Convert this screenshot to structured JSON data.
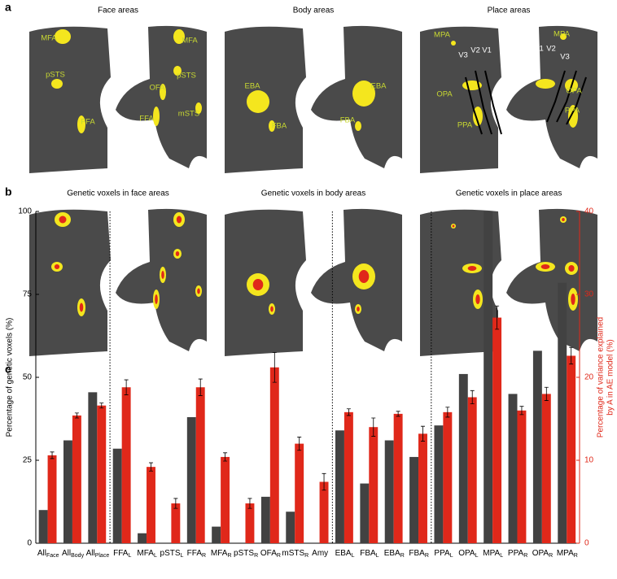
{
  "panels": {
    "a": {
      "label": "a",
      "maps": [
        {
          "title": "Face areas",
          "labels": [
            "MFA",
            "pSTS",
            "FFA",
            "MFA",
            "pSTS",
            "OFA",
            "mSTS",
            "FFA"
          ]
        },
        {
          "title": "Body areas",
          "labels": [
            "EBA",
            "FBA",
            "EBA",
            "FBA"
          ]
        },
        {
          "title": "Place areas",
          "labels": [
            "MPA",
            "V3",
            "V2",
            "V1",
            "OPA",
            "PPA",
            "MPA",
            "V1",
            "V2",
            "V3",
            "OPA",
            "PPA"
          ]
        }
      ]
    },
    "b": {
      "label": "b",
      "maps": [
        {
          "title": "Genetic voxels in face areas"
        },
        {
          "title": "Genetic voxels in body areas"
        },
        {
          "title": "Genetic voxels in place areas"
        }
      ]
    }
  },
  "chart_data": {
    "type": "bar",
    "label": "c",
    "categories": [
      {
        "text": "All",
        "sub": "Face"
      },
      {
        "text": "All",
        "sub": "Body"
      },
      {
        "text": "All",
        "sub": "Place"
      },
      {
        "text": "FFA",
        "sub": "L"
      },
      {
        "text": "MFA",
        "sub": "L"
      },
      {
        "text": "pSTS",
        "sub": "L"
      },
      {
        "text": "FFA",
        "sub": "R"
      },
      {
        "text": "MFA",
        "sub": "R"
      },
      {
        "text": "pSTS",
        "sub": "R"
      },
      {
        "text": "OFA",
        "sub": "R"
      },
      {
        "text": "mSTS",
        "sub": "R"
      },
      {
        "text": "Amy"
      },
      {
        "text": "EBA",
        "sub": "L"
      },
      {
        "text": "FBA",
        "sub": "L"
      },
      {
        "text": "EBA",
        "sub": "R"
      },
      {
        "text": "FBA",
        "sub": "R"
      },
      {
        "text": "PPA",
        "sub": "L"
      },
      {
        "text": "OPA",
        "sub": "L"
      },
      {
        "text": "MPA",
        "sub": "L"
      },
      {
        "text": "PPA",
        "sub": "R"
      },
      {
        "text": "OPA",
        "sub": "R"
      },
      {
        "text": "MPA",
        "sub": "R"
      }
    ],
    "series": [
      {
        "color": "#424242",
        "values": [
          10,
          31,
          45.5,
          28.5,
          3,
          0,
          38,
          5,
          0,
          14,
          9.5,
          0,
          34,
          18,
          31,
          26,
          35.5,
          51,
          100,
          45,
          58,
          78.5
        ]
      },
      {
        "color": "#e0281a",
        "axis": "y2",
        "values": [
          10.6,
          15.4,
          16.6,
          18.8,
          9.2,
          4.8,
          18.8,
          10.4,
          4.8,
          21.2,
          12,
          7.4,
          15.8,
          14,
          15.6,
          13.2,
          15.8,
          17.6,
          27.2,
          16,
          18,
          22.6
        ],
        "errors": [
          0.4,
          0.3,
          0.3,
          0.9,
          0.5,
          0.6,
          1,
          0.5,
          0.6,
          1.8,
          0.8,
          1,
          0.4,
          1.1,
          0.3,
          0.9,
          0.6,
          0.8,
          1.4,
          0.5,
          0.8,
          1
        ]
      }
    ],
    "ylabel": "Percentage of genetic voxels (%)",
    "y2label": [
      "Percentage of variance explained",
      "by A in AE model (%)"
    ],
    "ylim": [
      0,
      100
    ],
    "yticks": [
      0,
      25,
      50,
      75,
      100
    ],
    "y2lim": [
      0,
      40
    ],
    "y2ticks": [
      0,
      10,
      20,
      30,
      40
    ]
  }
}
